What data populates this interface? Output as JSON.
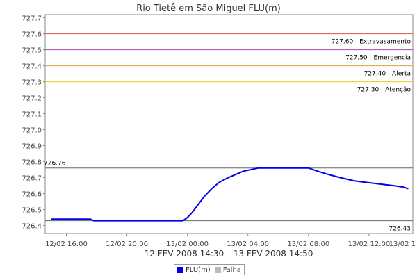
{
  "chart_data": {
    "type": "line",
    "title": "Rio Tietê em São Miguel FLU(m)",
    "xlabel": "12 FEV 2008 14:30 – 13 FEV 2008 14:50",
    "ylabel": "",
    "x_range_hours": [
      14.6,
      38.9
    ],
    "ylim": [
      726.35,
      727.72
    ],
    "grid": false,
    "legend_placement": "bottom-center",
    "y_ticks": [
      "726.4",
      "726.5",
      "726.6",
      "726.7",
      "726.8",
      "726.9",
      "727.0",
      "727.1",
      "727.2",
      "727.3",
      "727.4",
      "727.5",
      "727.6",
      "727.7"
    ],
    "x_ticks": [
      {
        "hour": 16,
        "label": "12/02 16:00"
      },
      {
        "hour": 20,
        "label": "12/02 20:00"
      },
      {
        "hour": 24,
        "label": "13/02 00:00"
      },
      {
        "hour": 28,
        "label": "13/02 04:00"
      },
      {
        "hour": 32,
        "label": "13/02 08:00"
      },
      {
        "hour": 36,
        "label": "13/02 12:00"
      },
      {
        "hour": 40,
        "label": "13/02 1"
      }
    ],
    "thresholds": [
      {
        "value": 727.6,
        "label": "727.60 - Extravasamento",
        "color": "#d9534f"
      },
      {
        "value": 727.5,
        "label": "727.50 - Emergencia",
        "color": "#b040c0"
      },
      {
        "value": 727.4,
        "label": "727.40 - Alerta",
        "color": "#e0a040"
      },
      {
        "value": 727.3,
        "label": "727.30 - Atenção",
        "color": "#e0d020"
      }
    ],
    "reference_lines": [
      {
        "value": 726.76,
        "label": "726.76",
        "label_side": "left"
      },
      {
        "value": 726.43,
        "label": "726.43",
        "label_side": "right"
      }
    ],
    "series": [
      {
        "name": "FLU(m)",
        "color": "#0000ee",
        "x": [
          15.0,
          17.6,
          17.8,
          19.0,
          21.0,
          23.0,
          23.7,
          24.0,
          24.3,
          24.7,
          25.1,
          25.6,
          26.1,
          26.7,
          27.2,
          27.7,
          28.2,
          28.7,
          29.5,
          31.0,
          32.0,
          32.6,
          33.3,
          34.1,
          35.0,
          35.8,
          36.7,
          37.6,
          38.3,
          38.6
        ],
        "values": [
          726.44,
          726.44,
          726.43,
          726.43,
          726.43,
          726.43,
          726.43,
          726.45,
          726.48,
          726.53,
          726.58,
          726.63,
          726.67,
          726.7,
          726.72,
          726.74,
          726.75,
          726.76,
          726.76,
          726.76,
          726.76,
          726.74,
          726.72,
          726.7,
          726.68,
          726.67,
          726.66,
          726.65,
          726.64,
          726.63
        ]
      }
    ],
    "legend": [
      {
        "label": "FLU(m)",
        "color": "#0000ee"
      },
      {
        "label": "Falha",
        "color": "#bbbbbb"
      }
    ]
  }
}
